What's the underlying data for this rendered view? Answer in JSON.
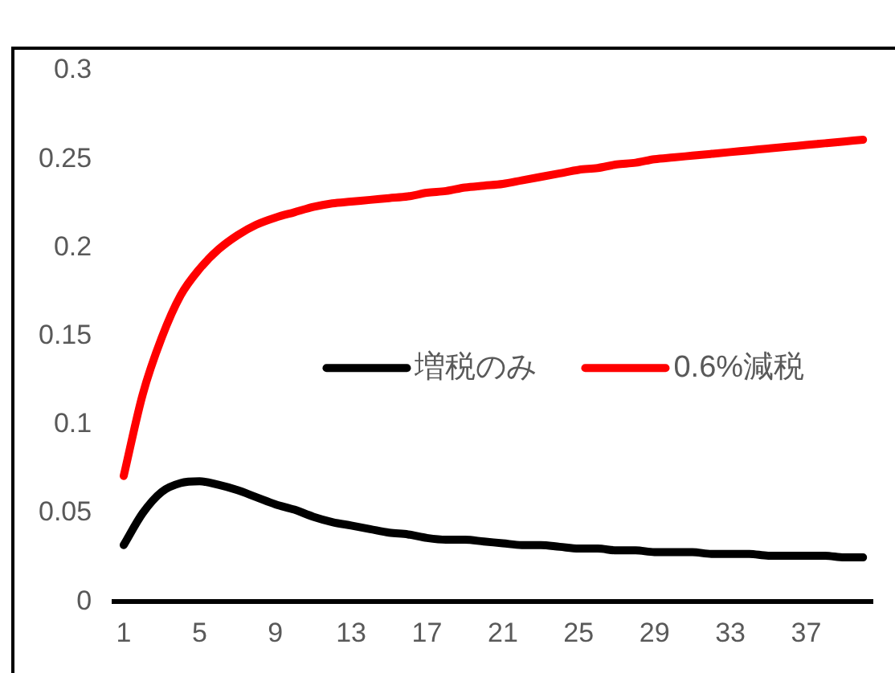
{
  "chart_data": {
    "type": "line",
    "categories": [
      "1",
      null,
      null,
      null,
      "5",
      null,
      null,
      null,
      "9",
      null,
      null,
      null,
      "13",
      null,
      null,
      null,
      "17",
      null,
      null,
      null,
      "21",
      null,
      null,
      null,
      "25",
      null,
      null,
      null,
      "29",
      null,
      null,
      null,
      "33",
      null,
      null,
      null,
      "37",
      null,
      null,
      null
    ],
    "series": [
      {
        "name": "増税のみ",
        "color": "#000000",
        "values": [
          0.032,
          0.05,
          0.062,
          0.067,
          0.068,
          0.066,
          0.063,
          0.059,
          0.055,
          0.052,
          0.048,
          0.045,
          0.043,
          0.041,
          0.039,
          0.038,
          0.036,
          0.035,
          0.035,
          0.034,
          0.033,
          0.032,
          0.032,
          0.031,
          0.03,
          0.03,
          0.029,
          0.029,
          0.028,
          0.028,
          0.028,
          0.027,
          0.027,
          0.027,
          0.026,
          0.026,
          0.026,
          0.026,
          0.025,
          0.025
        ]
      },
      {
        "name": "0.6%減税",
        "color": "#ff0000",
        "values": [
          0.071,
          0.117,
          0.149,
          0.173,
          0.188,
          0.199,
          0.207,
          0.213,
          0.217,
          0.22,
          0.223,
          0.225,
          0.226,
          0.227,
          0.228,
          0.229,
          0.231,
          0.232,
          0.234,
          0.235,
          0.236,
          0.238,
          0.24,
          0.242,
          0.244,
          0.245,
          0.247,
          0.248,
          0.25,
          0.251,
          0.252,
          0.253,
          0.254,
          0.255,
          0.256,
          0.257,
          0.258,
          0.259,
          0.26,
          0.261
        ]
      }
    ],
    "ylim": [
      0,
      0.3
    ],
    "yticks": [
      0,
      0.05,
      0.1,
      0.15,
      0.2,
      0.25,
      0.3
    ],
    "grid": false,
    "legend": "right",
    "marker": "none",
    "line_style": "solid"
  }
}
